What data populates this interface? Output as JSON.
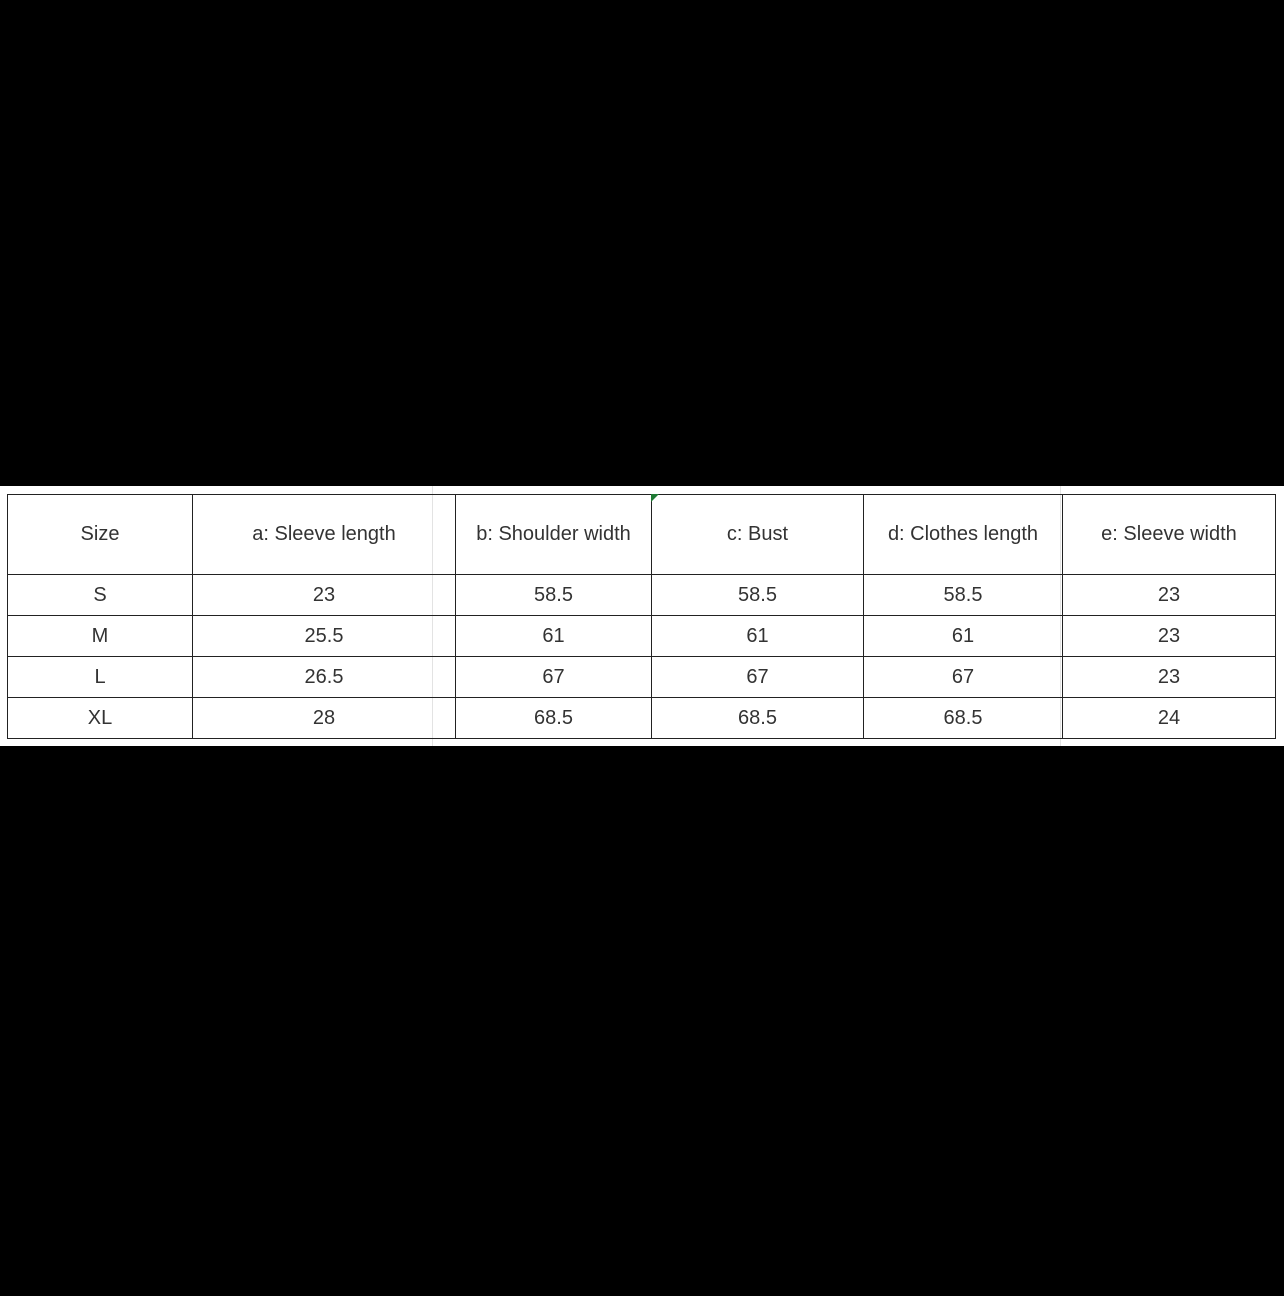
{
  "table": {
    "headers": [
      "Size",
      "a: Sleeve length",
      "b: Shoulder width",
      "c: Bust",
      "d: Clothes length",
      "e: Sleeve width"
    ],
    "rows": [
      [
        "S",
        "23",
        "58.5",
        "58.5",
        "58.5",
        "23"
      ],
      [
        "M",
        "25.5",
        "61",
        "61",
        "61",
        "23"
      ],
      [
        "L",
        "26.5",
        "67",
        "67",
        "67",
        "23"
      ],
      [
        "XL",
        "28",
        "68.5",
        "68.5",
        "68.5",
        "24"
      ]
    ]
  },
  "colors": {
    "background": "#000000",
    "sheet": "#ffffff",
    "border": "#222222",
    "selection_marker": "#1e7a34"
  }
}
